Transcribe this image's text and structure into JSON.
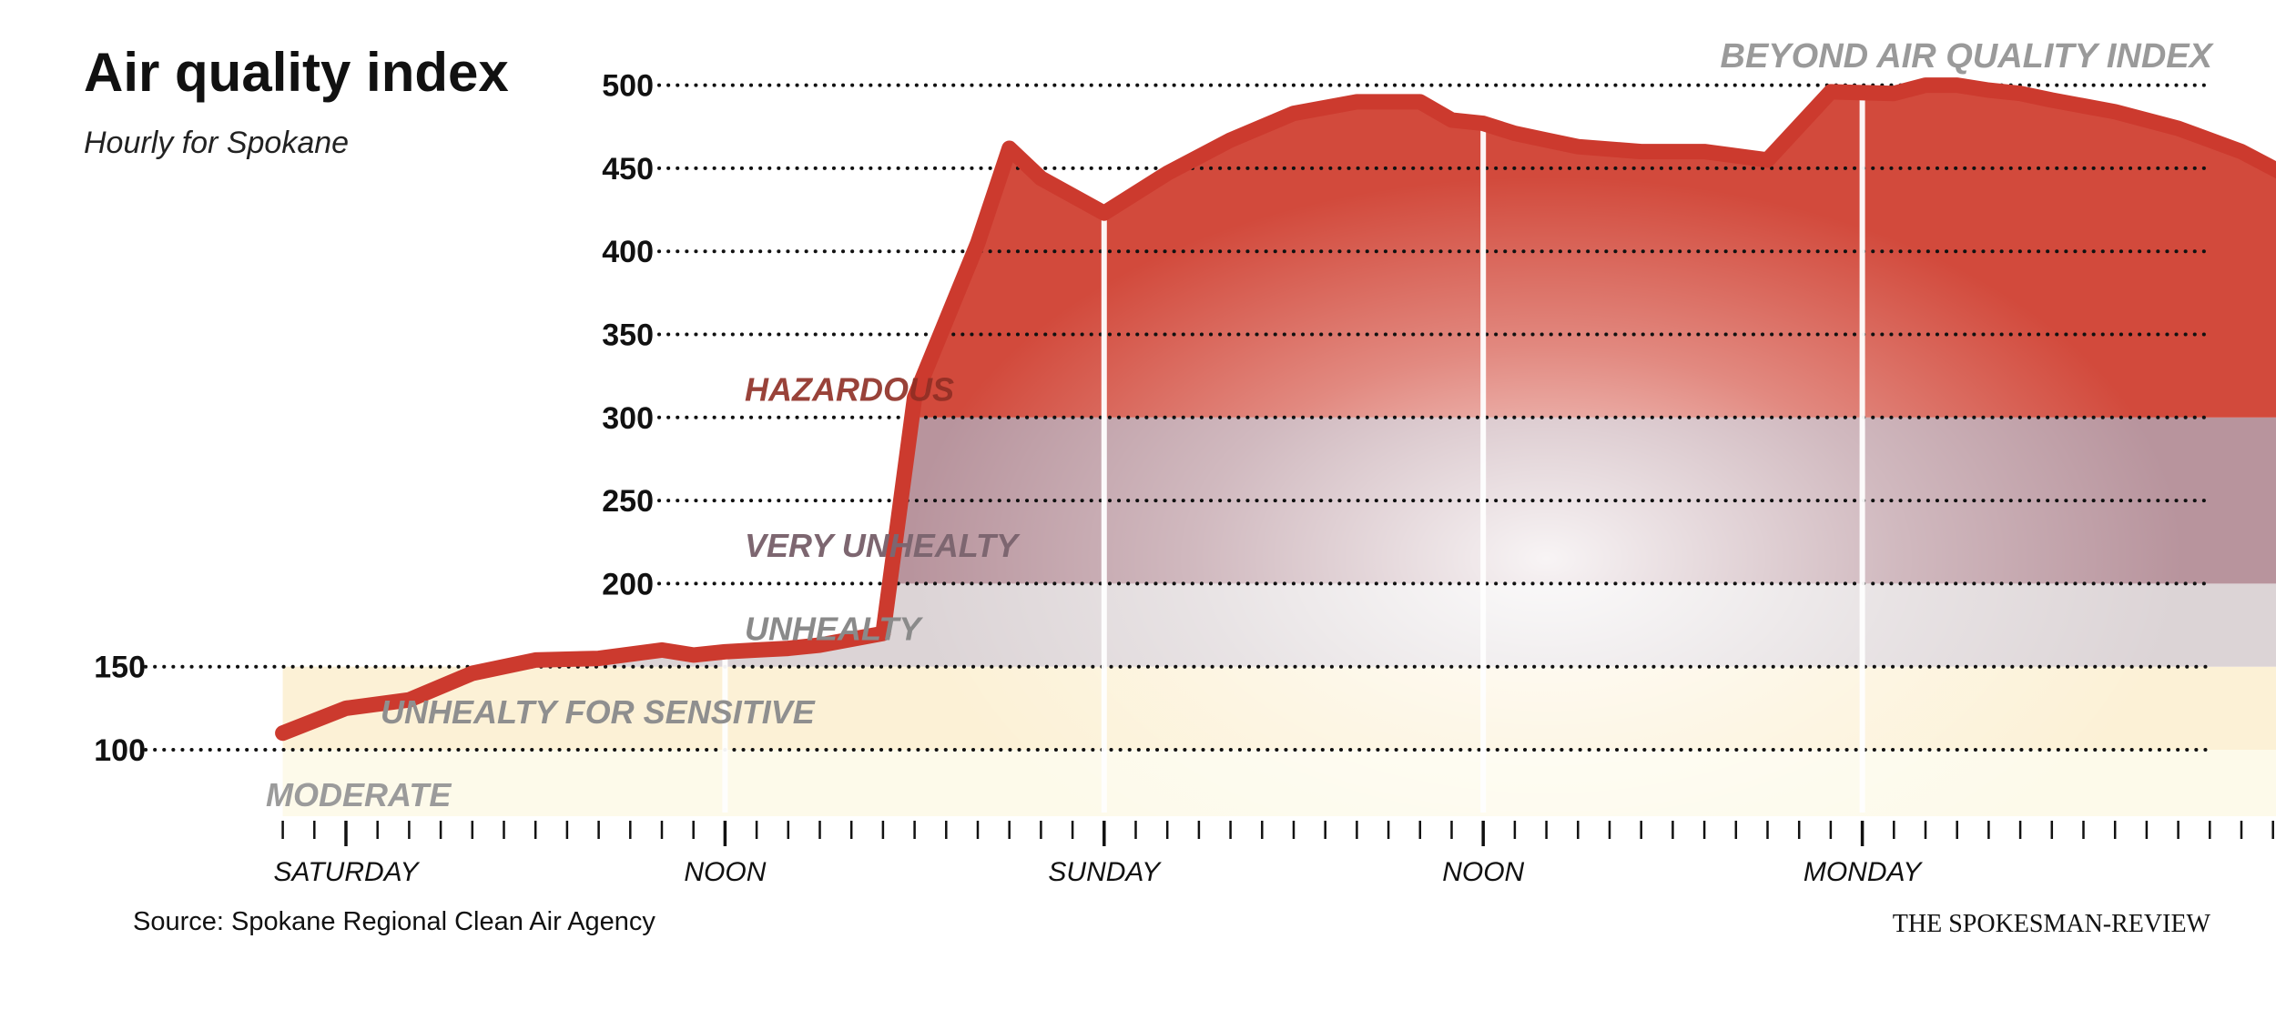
{
  "header": {
    "title": "Air quality index",
    "subtitle": "Hourly for Spokane"
  },
  "footer": {
    "source": "Source: Spokane Regional Clean Air Agency",
    "credit": "THE SPOKESMAN-REVIEW"
  },
  "colors": {
    "line": "#cc3a2e",
    "hazardous": "#d24a3c",
    "very_unhealthy": "#b8949d",
    "unhealthy": "#dcd4d6",
    "sensitive": "#fcf1d6",
    "moderate": "#fdfaea",
    "axis_text": "#111111",
    "band_label": "#8f8f8f"
  },
  "chart_data": {
    "type": "area",
    "title": "Air quality index",
    "subtitle": "Hourly for Spokane",
    "xlabel": "",
    "ylabel": "",
    "ylim": [
      60,
      500
    ],
    "x_unit": "hours from Saturday midnight",
    "x": [
      -2,
      0,
      2,
      4,
      6,
      8,
      10,
      11,
      12,
      13,
      14,
      15,
      17,
      18,
      20,
      21,
      22,
      24,
      26,
      28,
      30,
      32,
      34,
      35,
      36,
      37,
      38,
      39,
      41,
      43,
      45,
      47,
      49,
      50,
      51,
      52,
      53,
      54,
      56,
      58,
      60,
      62
    ],
    "values": [
      110,
      125,
      130,
      146,
      154,
      155,
      160,
      157,
      159,
      160,
      161,
      163,
      170,
      312,
      405,
      462,
      444,
      423,
      447,
      467,
      483,
      490,
      490,
      479,
      477,
      471,
      467,
      463,
      460,
      460,
      455,
      496,
      495,
      500,
      500,
      497,
      495,
      491,
      484,
      474,
      460,
      440
    ],
    "x_ticks": [
      {
        "x": 0,
        "label": "SATURDAY"
      },
      {
        "x": 12,
        "label": "NOON"
      },
      {
        "x": 24,
        "label": "SUNDAY"
      },
      {
        "x": 36,
        "label": "NOON"
      },
      {
        "x": 48,
        "label": "MONDAY"
      }
    ],
    "y_ticks": [
      100,
      150,
      200,
      250,
      300,
      350,
      400,
      450,
      500
    ],
    "grid": "horizontal dotted",
    "bands": [
      {
        "label": "MODERATE",
        "from": 60,
        "to": 100
      },
      {
        "label": "UNHEALTY FOR SENSITIVE",
        "from": 100,
        "to": 150
      },
      {
        "label": "UNHEALTY",
        "from": 150,
        "to": 200
      },
      {
        "label": "VERY UNHEALTY",
        "from": 200,
        "to": 300
      },
      {
        "label": "HAZARDOUS",
        "from": 300,
        "to": 500
      }
    ],
    "annotation": "BEYOND AIR QUALITY INDEX"
  }
}
